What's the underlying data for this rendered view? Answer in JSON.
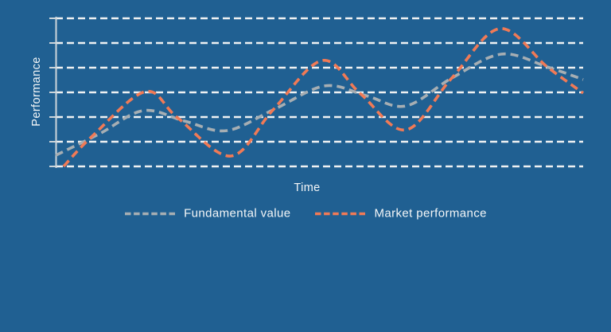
{
  "colors": {
    "background": "#206092",
    "gridline": "#eef1f2",
    "axis": "#ccd5da",
    "text": "#f5f7f8",
    "fundamental": "#a6aeb3",
    "market": "#f07a56"
  },
  "chart_data": {
    "type": "line",
    "title": "",
    "xlabel": "Time",
    "ylabel": "Performance",
    "x_axis": {
      "min": 0,
      "max": 100,
      "tick_labels": "none"
    },
    "y_axis": {
      "min": 0,
      "max": 6,
      "gridlines": 7,
      "tick_labels": "none"
    },
    "grid": "horizontal-dashed",
    "legend_position": "bottom-center",
    "line_style": "dashed",
    "series": [
      {
        "name": "Fundamental value",
        "color": "#a6aeb3",
        "style": "dashed",
        "points": [
          [
            0,
            0.45
          ],
          [
            8.3,
            1.32
          ],
          [
            16.6,
            2.26
          ],
          [
            24.4,
            1.84
          ],
          [
            32.4,
            1.45
          ],
          [
            41.5,
            2.32
          ],
          [
            51.0,
            3.26
          ],
          [
            58.8,
            2.87
          ],
          [
            66.4,
            2.45
          ],
          [
            75.1,
            3.58
          ],
          [
            84.5,
            4.55
          ],
          [
            93.2,
            4.03
          ],
          [
            100,
            3.52
          ]
        ]
      },
      {
        "name": "Market performance",
        "color": "#f07a56",
        "style": "dashed",
        "points": [
          [
            1.5,
            0.0
          ],
          [
            7.1,
            1.26
          ],
          [
            17.0,
            3.03
          ],
          [
            23.1,
            1.97
          ],
          [
            33.2,
            0.42
          ],
          [
            41.2,
            2.29
          ],
          [
            50.5,
            4.29
          ],
          [
            57.8,
            2.94
          ],
          [
            66.4,
            1.48
          ],
          [
            75.1,
            3.58
          ],
          [
            84.2,
            5.58
          ],
          [
            93.2,
            4.03
          ],
          [
            100,
            2.97
          ]
        ]
      }
    ]
  }
}
